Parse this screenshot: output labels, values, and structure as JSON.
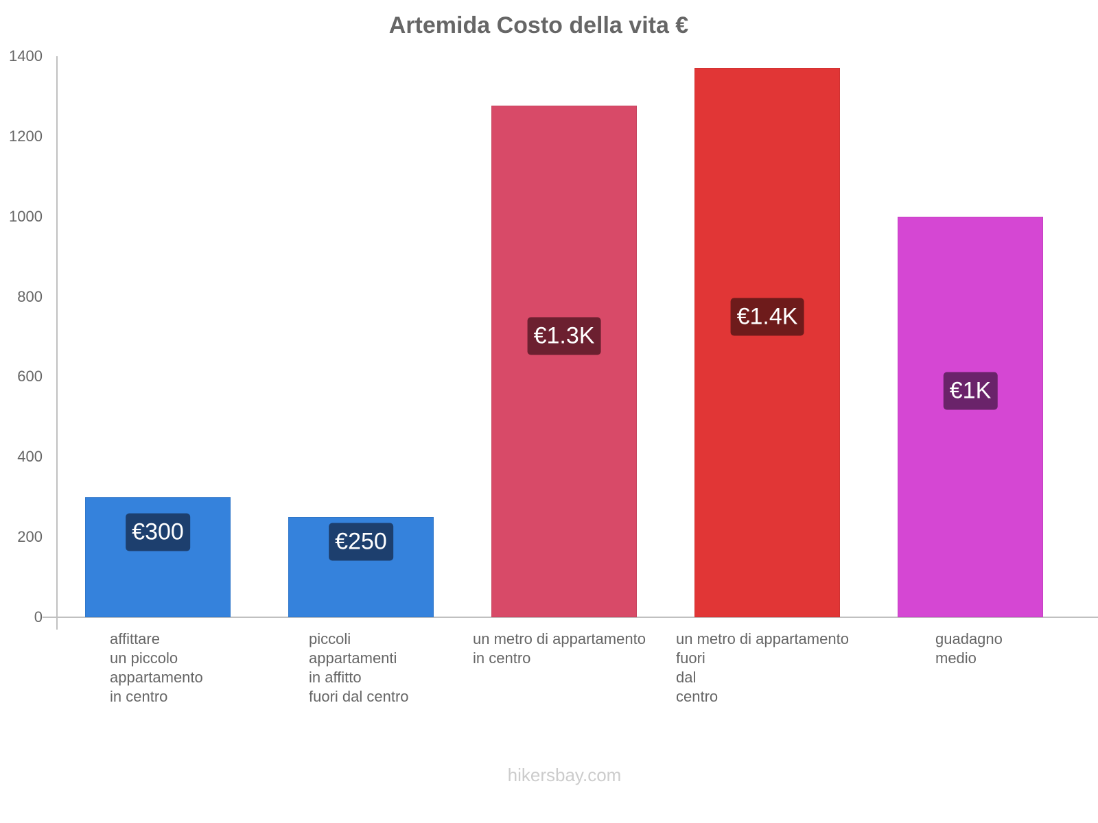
{
  "chart_data": {
    "type": "bar",
    "title": "Artemida Costo della vita €",
    "xlabel": "",
    "ylabel": "",
    "ylim": [
      0,
      1400
    ],
    "yticks": [
      "0",
      "200",
      "400",
      "600",
      "800",
      "1000",
      "1200",
      "1400"
    ],
    "grid": false,
    "legend": null,
    "categories": [
      "affittare\nun piccolo\nappartamento\nin centro",
      "piccoli\nappartamenti\nin affitto\nfuori dal centro",
      "un metro di appartamento\nin centro",
      "un metro di appartamento\nfuori\ndal\ncentro",
      "guadagno\nmedio"
    ],
    "values": [
      300,
      250,
      1277,
      1371,
      1000
    ],
    "value_labels": [
      "€300",
      "€250",
      "€1.3K",
      "€1.4K",
      "€1K"
    ],
    "colors": [
      "#3582dc",
      "#3582dc",
      "#d84a68",
      "#e13636",
      "#d547d3"
    ],
    "label_colors": [
      "#1d3f6e",
      "#1d3f6e",
      "#6c2030",
      "#6e1b1b",
      "#6a236a"
    ]
  },
  "footer": "hikersbay.com"
}
